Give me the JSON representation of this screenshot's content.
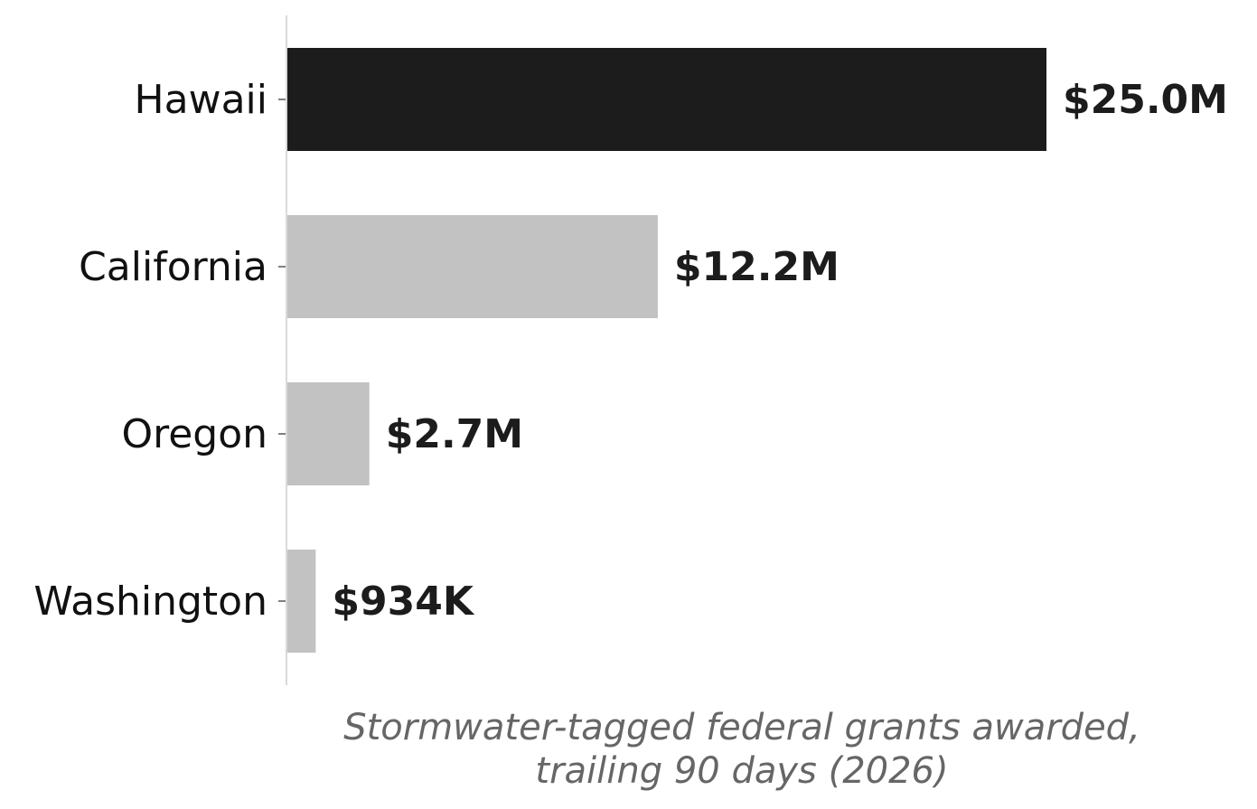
{
  "chart_data": {
    "type": "bar",
    "orientation": "horizontal",
    "categories": [
      "Hawaii",
      "California",
      "Oregon",
      "Washington"
    ],
    "values": [
      25.0,
      12.2,
      2.7,
      0.934
    ],
    "value_units": "$M",
    "value_labels": [
      "$25.0M",
      "$12.2M",
      "$2.7M",
      "$934K"
    ],
    "highlight_index": 0,
    "colors": {
      "highlight": "#1c1c1c",
      "default": "#c2c2c2",
      "axis": "#d9d9d9",
      "tick": "#555555",
      "category_text": "#111111",
      "value_text": "#1c1c1c",
      "xlabel_text": "#666666"
    },
    "xlabel_lines": [
      "Stormwater-tagged federal grants awarded,",
      "trailing 90 days (2026)"
    ],
    "xlim": [
      0,
      25.0
    ],
    "grid": false,
    "legend": "none"
  }
}
